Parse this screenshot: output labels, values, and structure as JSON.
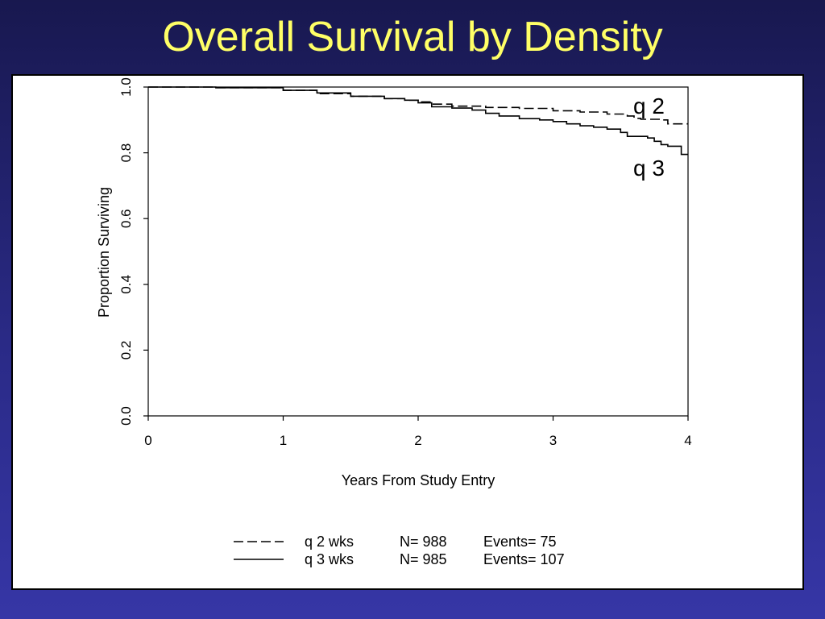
{
  "slide": {
    "title": "Overall Survival by Density"
  },
  "chart_data": {
    "type": "line",
    "title": "",
    "xlabel": "Years From Study Entry",
    "ylabel": "Proportion Surviving",
    "xlim": [
      0,
      4
    ],
    "ylim": [
      0,
      1.0
    ],
    "x_ticks": [
      "0",
      "1",
      "2",
      "3",
      "4"
    ],
    "y_ticks": [
      "0.0",
      "0.2",
      "0.4",
      "0.6",
      "0.8",
      "1.0"
    ],
    "grid": false,
    "series": [
      {
        "name": "q 2",
        "style": "dashed",
        "x": [
          0,
          0.5,
          1.0,
          1.25,
          1.5,
          1.75,
          1.9,
          2.0,
          2.1,
          2.25,
          2.5,
          2.75,
          3.0,
          3.2,
          3.4,
          3.55,
          3.6,
          3.65,
          3.8,
          3.85,
          4.0
        ],
        "y": [
          1.0,
          0.998,
          0.99,
          0.98,
          0.972,
          0.965,
          0.96,
          0.955,
          0.948,
          0.942,
          0.938,
          0.935,
          0.928,
          0.924,
          0.918,
          0.912,
          0.905,
          0.902,
          0.9,
          0.888,
          0.888
        ]
      },
      {
        "name": "q 3",
        "style": "solid",
        "x": [
          0,
          0.5,
          1.0,
          1.25,
          1.5,
          1.75,
          1.9,
          2.0,
          2.1,
          2.25,
          2.4,
          2.5,
          2.6,
          2.75,
          2.9,
          3.0,
          3.1,
          3.2,
          3.3,
          3.4,
          3.5,
          3.55,
          3.6,
          3.7,
          3.75,
          3.8,
          3.85,
          3.95,
          4.0
        ],
        "y": [
          1.0,
          0.998,
          0.99,
          0.982,
          0.972,
          0.965,
          0.96,
          0.952,
          0.94,
          0.936,
          0.93,
          0.92,
          0.912,
          0.904,
          0.9,
          0.895,
          0.888,
          0.882,
          0.878,
          0.872,
          0.862,
          0.85,
          0.85,
          0.845,
          0.835,
          0.825,
          0.82,
          0.795,
          0.795
        ]
      }
    ],
    "curve_labels": [
      "q 2",
      "q 3"
    ],
    "legend": {
      "placement": "bottom-center",
      "rows": [
        {
          "style": "dashed",
          "label": "q 2 wks",
          "n": "N= 988",
          "events": "Events= 75"
        },
        {
          "style": "solid",
          "label": "q 3 wks",
          "n": "N= 985",
          "events": "Events= 107"
        }
      ]
    }
  }
}
